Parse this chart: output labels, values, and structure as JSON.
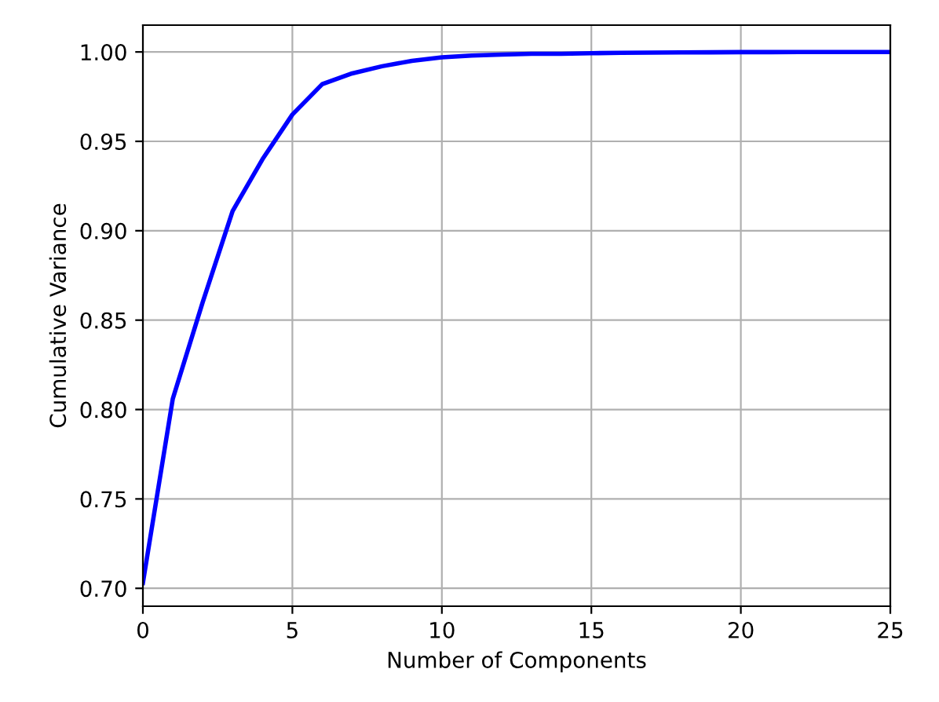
{
  "chart_data": {
    "type": "line",
    "xlabel": "Number of Components",
    "ylabel": "Cumulative Variance",
    "x": [
      0,
      1,
      2,
      3,
      4,
      5,
      6,
      7,
      8,
      9,
      10,
      11,
      12,
      13,
      14,
      15,
      16,
      17,
      18,
      19,
      20,
      21,
      22,
      23,
      24,
      25
    ],
    "series": [
      {
        "color": "#0000ff",
        "values": [
          0.703,
          0.806,
          0.86,
          0.911,
          0.94,
          0.965,
          0.982,
          0.988,
          0.992,
          0.995,
          0.997,
          0.998,
          0.9985,
          0.999,
          0.999,
          0.9993,
          0.9995,
          0.9996,
          0.9997,
          0.9998,
          0.9999,
          0.9999,
          1.0,
          1.0,
          1.0,
          1.0
        ]
      }
    ],
    "xlim": [
      0,
      25
    ],
    "ylim": [
      0.69,
      1.015
    ],
    "xticks": [
      0,
      5,
      10,
      15,
      20,
      25
    ],
    "yticks": [
      {
        "value": 0.7,
        "label": "0.70"
      },
      {
        "value": 0.75,
        "label": "0.75"
      },
      {
        "value": 0.8,
        "label": "0.80"
      },
      {
        "value": 0.85,
        "label": "0.85"
      },
      {
        "value": 0.9,
        "label": "0.90"
      },
      {
        "value": 0.95,
        "label": "0.95"
      },
      {
        "value": 1.0,
        "label": "1.00"
      }
    ],
    "grid": true,
    "marker": "none",
    "line_style": "solid"
  }
}
